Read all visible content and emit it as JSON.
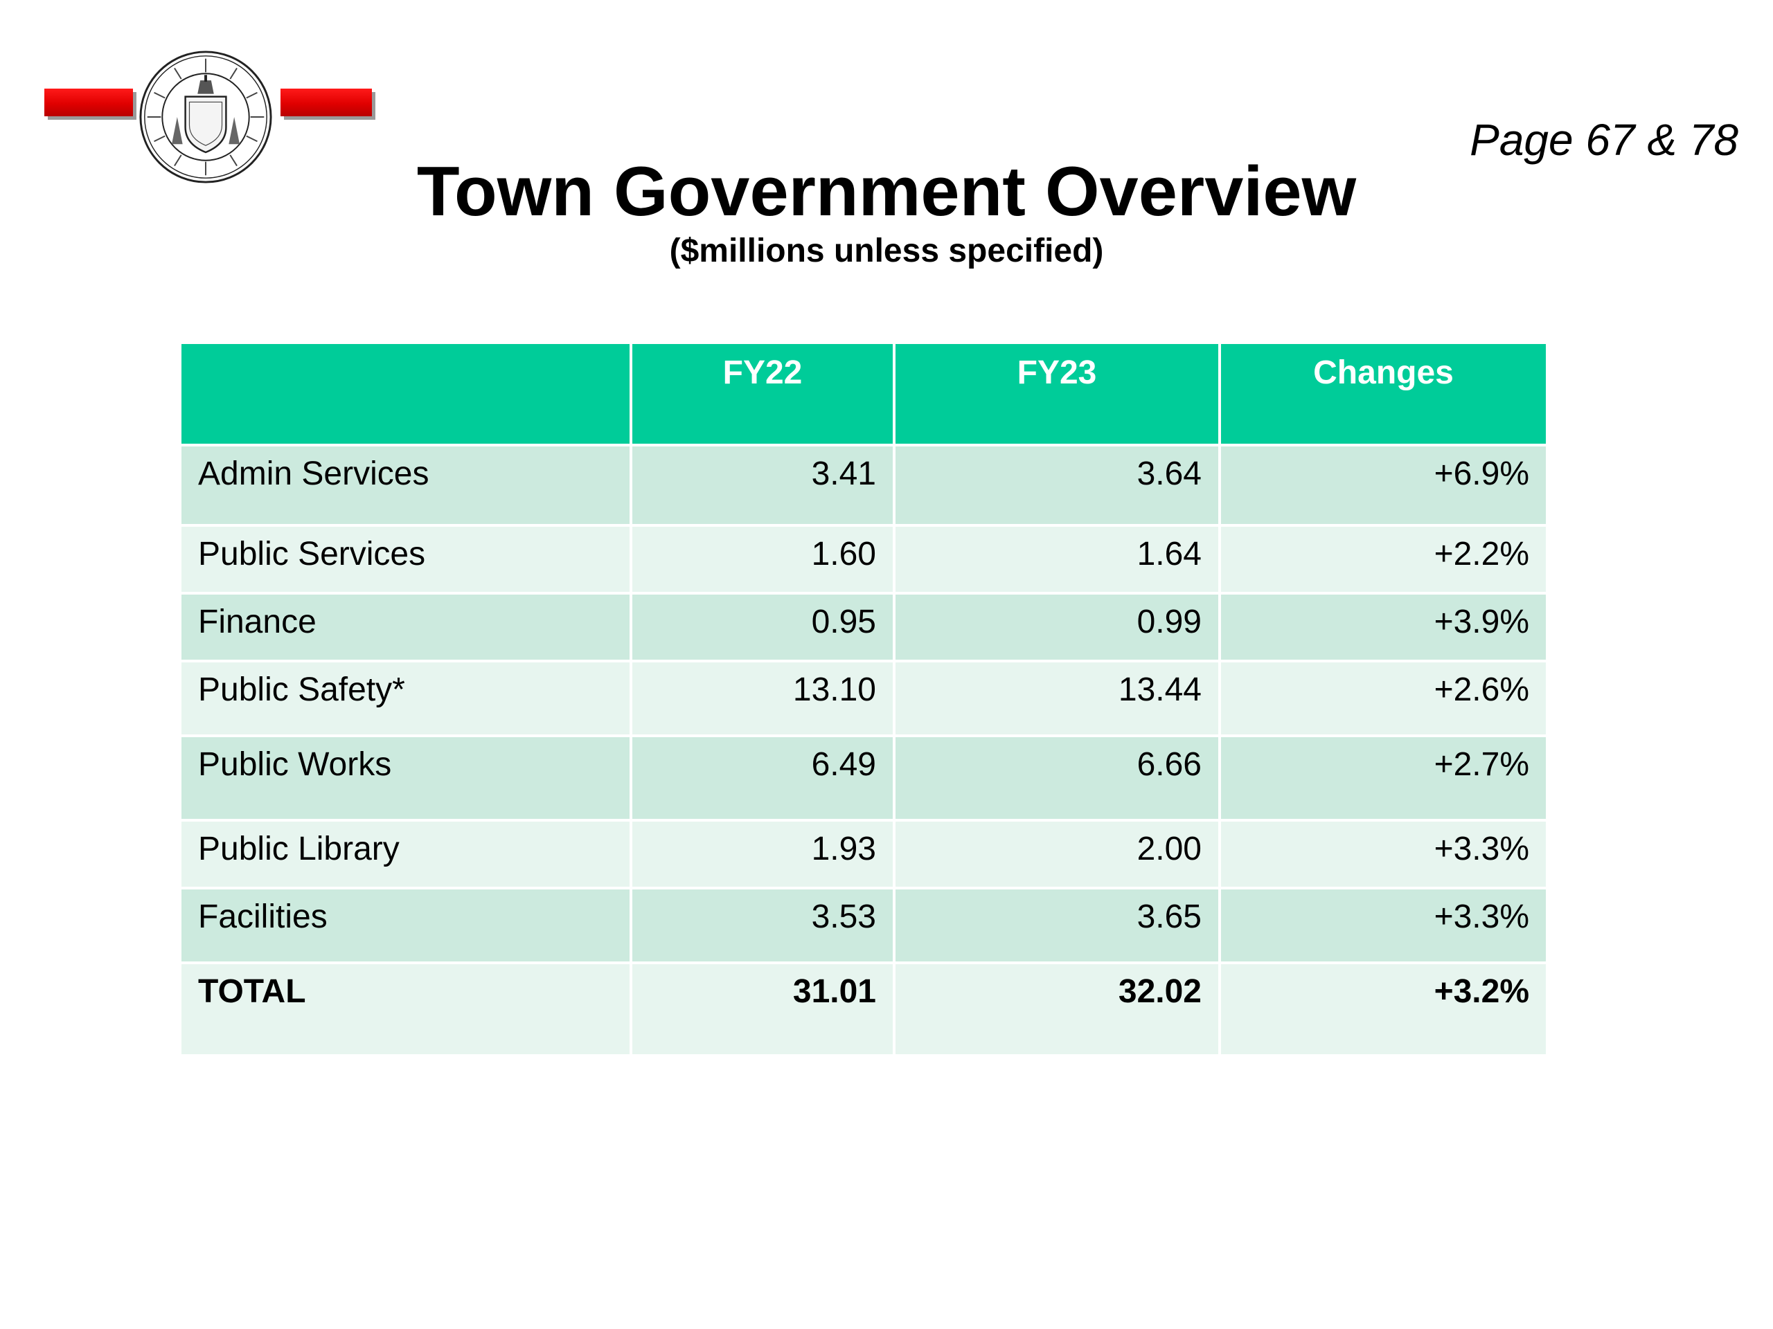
{
  "header": {
    "page_ref": "Page 67 & 78",
    "title": "Town Government Overview",
    "subtitle": "($millions unless specified)"
  },
  "logo": {
    "seal_icon": "town-of-reading-seal-icon",
    "seal_text": "TOWN OF READING · SETTLED 1639 · INCORPORATED 1644",
    "bar_color": "#e00000"
  },
  "table": {
    "header_color": "#00cc99",
    "row_dark_color": "#cceade",
    "row_light_color": "#e7f5ef",
    "columns": [
      "",
      "FY22",
      "FY23",
      "Changes"
    ],
    "rows": [
      {
        "label": "Admin Services",
        "fy22": "3.41",
        "fy23": "3.64",
        "change": "+6.9%"
      },
      {
        "label": "Public Services",
        "fy22": "1.60",
        "fy23": "1.64",
        "change": "+2.2%"
      },
      {
        "label": "Finance",
        "fy22": "0.95",
        "fy23": "0.99",
        "change": "+3.9%"
      },
      {
        "label": "Public Safety*",
        "fy22": "13.10",
        "fy23": "13.44",
        "change": "+2.6%"
      },
      {
        "label": "Public Works",
        "fy22": "6.49",
        "fy23": "6.66",
        "change": "+2.7%"
      },
      {
        "label": "Public Library",
        "fy22": "1.93",
        "fy23": "2.00",
        "change": "+3.3%"
      },
      {
        "label": "Facilities",
        "fy22": "3.53",
        "fy23": "3.65",
        "change": "+3.3%"
      }
    ],
    "total": {
      "label": "TOTAL",
      "fy22": "31.01",
      "fy23": "32.02",
      "change": "+3.2%"
    }
  }
}
